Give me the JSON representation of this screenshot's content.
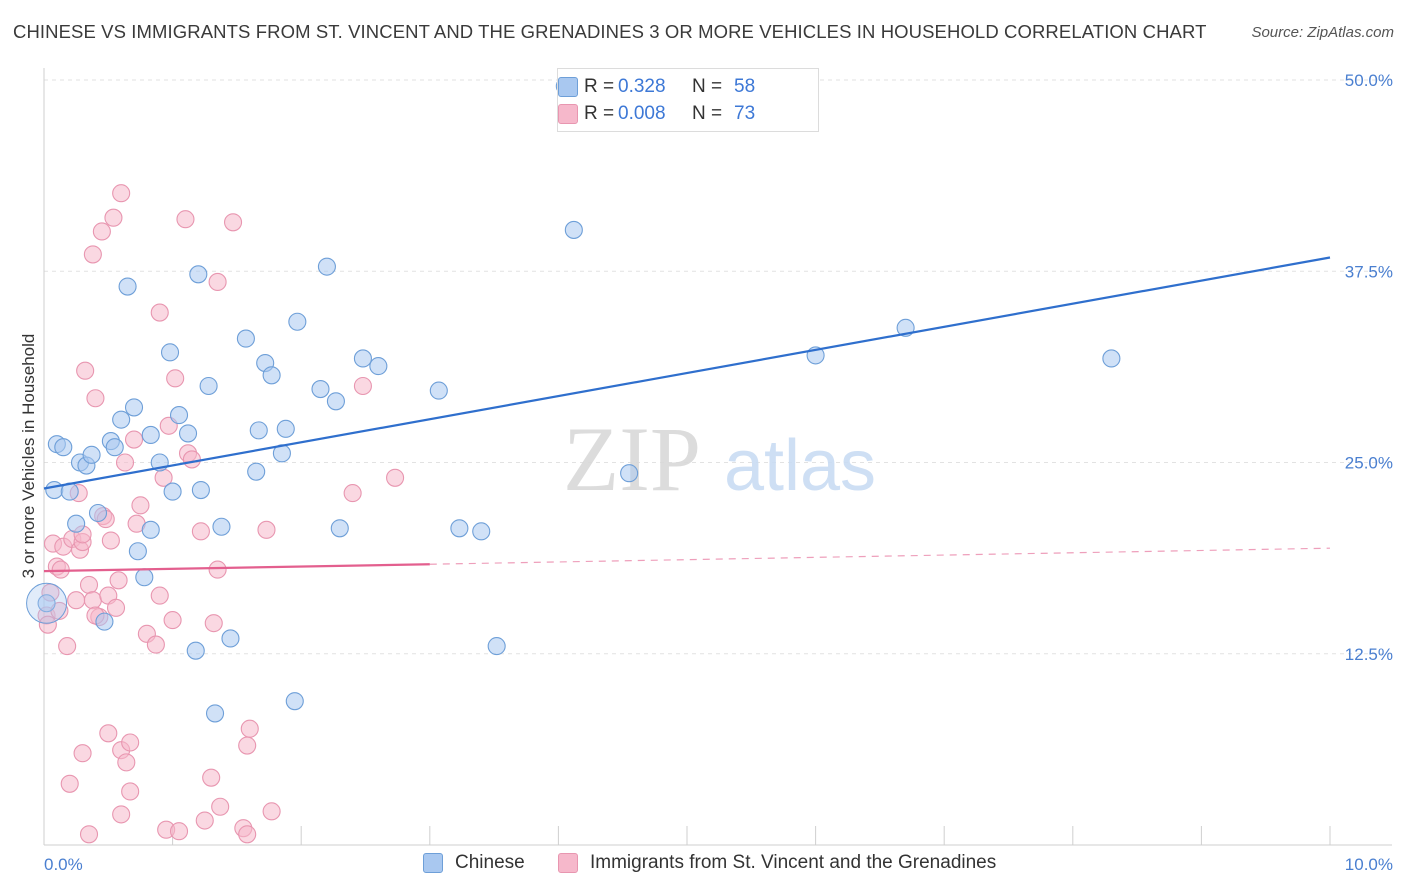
{
  "title": "CHINESE VS IMMIGRANTS FROM ST. VINCENT AND THE GRENADINES 3 OR MORE VEHICLES IN HOUSEHOLD CORRELATION CHART",
  "source": "Source: ZipAtlas.com",
  "watermark": {
    "zip": "ZIP",
    "atlas": "atlas"
  },
  "legend": {
    "rows": [
      {
        "r_label": "R =",
        "r_value": "0.328",
        "n_label": "N =",
        "n_value": "58",
        "color": "#a9c8f0"
      },
      {
        "r_label": "R =",
        "r_value": "0.008",
        "n_label": "N =",
        "n_value": "73",
        "color": "#f6b8cb"
      }
    ]
  },
  "bottom_legend": [
    "Chinese",
    "Immigrants from St. Vincent and the Grenadines"
  ],
  "colors": {
    "blue_fill": "#a9c8f0",
    "blue_stroke": "#6e9fd8",
    "blue_line": "#2f6fcd",
    "pink_fill": "#f6b8cb",
    "pink_stroke": "#e896b0",
    "pink_line": "#e35f8e",
    "tick_text": "#4a7fd0",
    "grid": "#e2e2e2"
  },
  "chart_data": {
    "type": "scatter",
    "xlabel": "",
    "ylabel": "3 or more Vehicles in Household",
    "xlim": [
      0,
      10
    ],
    "ylim": [
      0,
      50
    ],
    "x_tick_labels": [
      "0.0%",
      "10.0%"
    ],
    "y_ticks": [
      12.5,
      25.0,
      37.5,
      50.0
    ],
    "y_tick_labels": [
      "12.5%",
      "25.0%",
      "37.5%",
      "50.0%"
    ],
    "grid": true,
    "legend_position": "top-center",
    "series": [
      {
        "name": "Chinese",
        "trend": {
          "x0": 0,
          "y0": 23.3,
          "x1": 10.0,
          "y1": 38.4,
          "solid_to": 10.0
        },
        "points": [
          [
            0.02,
            15.8
          ],
          [
            0.08,
            23.2
          ],
          [
            0.1,
            26.2
          ],
          [
            0.15,
            26.0
          ],
          [
            0.2,
            23.1
          ],
          [
            0.25,
            21.0
          ],
          [
            0.28,
            25.0
          ],
          [
            0.33,
            24.8
          ],
          [
            0.37,
            25.5
          ],
          [
            0.42,
            21.7
          ],
          [
            0.47,
            14.6
          ],
          [
            0.52,
            26.4
          ],
          [
            0.55,
            26.0
          ],
          [
            0.6,
            27.8
          ],
          [
            0.65,
            36.5
          ],
          [
            0.7,
            28.6
          ],
          [
            0.73,
            19.2
          ],
          [
            0.78,
            17.5
          ],
          [
            0.83,
            26.8
          ],
          [
            0.83,
            20.6
          ],
          [
            0.9,
            25.0
          ],
          [
            0.98,
            32.2
          ],
          [
            1.0,
            23.1
          ],
          [
            1.05,
            28.1
          ],
          [
            1.12,
            26.9
          ],
          [
            1.18,
            12.7
          ],
          [
            1.2,
            37.3
          ],
          [
            1.22,
            23.2
          ],
          [
            1.28,
            30.0
          ],
          [
            1.33,
            8.6
          ],
          [
            1.38,
            20.8
          ],
          [
            1.45,
            13.5
          ],
          [
            1.57,
            33.1
          ],
          [
            1.65,
            24.4
          ],
          [
            1.67,
            27.1
          ],
          [
            1.72,
            31.5
          ],
          [
            1.77,
            30.7
          ],
          [
            1.85,
            25.6
          ],
          [
            1.88,
            27.2
          ],
          [
            1.95,
            9.4
          ],
          [
            1.97,
            34.2
          ],
          [
            2.15,
            29.8
          ],
          [
            2.2,
            37.8
          ],
          [
            2.27,
            29.0
          ],
          [
            2.3,
            20.7
          ],
          [
            2.48,
            31.8
          ],
          [
            2.6,
            31.3
          ],
          [
            3.07,
            29.7
          ],
          [
            3.23,
            20.7
          ],
          [
            3.4,
            20.5
          ],
          [
            3.52,
            13.0
          ],
          [
            4.05,
            49.6
          ],
          [
            4.12,
            40.2
          ],
          [
            4.55,
            24.3
          ],
          [
            6.0,
            32.0
          ],
          [
            6.7,
            33.8
          ],
          [
            8.3,
            31.8
          ]
        ]
      },
      {
        "name": "Immigrants from St. Vincent and the Grenadines",
        "trend": {
          "x0": 0,
          "y0": 17.9,
          "x1": 10.0,
          "y1": 19.4,
          "solid_to": 3.0
        },
        "points": [
          [
            0.02,
            15.0
          ],
          [
            0.03,
            14.4
          ],
          [
            0.05,
            16.5
          ],
          [
            0.07,
            19.7
          ],
          [
            0.1,
            18.2
          ],
          [
            0.12,
            15.3
          ],
          [
            0.13,
            18.0
          ],
          [
            0.15,
            19.5
          ],
          [
            0.18,
            13.0
          ],
          [
            0.2,
            4.0
          ],
          [
            0.22,
            20.0
          ],
          [
            0.25,
            16.0
          ],
          [
            0.27,
            23.0
          ],
          [
            0.28,
            19.3
          ],
          [
            0.3,
            6.0
          ],
          [
            0.3,
            19.8
          ],
          [
            0.3,
            20.3
          ],
          [
            0.32,
            31.0
          ],
          [
            0.35,
            17.0
          ],
          [
            0.35,
            0.7
          ],
          [
            0.38,
            38.6
          ],
          [
            0.38,
            16.0
          ],
          [
            0.4,
            29.2
          ],
          [
            0.43,
            14.9
          ],
          [
            0.4,
            15.0
          ],
          [
            0.45,
            40.1
          ],
          [
            0.46,
            21.5
          ],
          [
            0.48,
            21.3
          ],
          [
            0.5,
            7.3
          ],
          [
            0.5,
            16.3
          ],
          [
            0.52,
            19.9
          ],
          [
            0.54,
            41.0
          ],
          [
            0.56,
            15.5
          ],
          [
            0.58,
            17.3
          ],
          [
            0.6,
            42.6
          ],
          [
            0.6,
            6.2
          ],
          [
            0.63,
            25.0
          ],
          [
            0.6,
            2.0
          ],
          [
            0.64,
            5.4
          ],
          [
            0.67,
            6.7
          ],
          [
            0.67,
            3.5
          ],
          [
            0.7,
            26.5
          ],
          [
            0.72,
            21.0
          ],
          [
            0.75,
            22.2
          ],
          [
            0.8,
            13.8
          ],
          [
            0.87,
            13.1
          ],
          [
            0.9,
            16.3
          ],
          [
            0.9,
            34.8
          ],
          [
            0.93,
            24.0
          ],
          [
            0.95,
            1.0
          ],
          [
            0.97,
            27.4
          ],
          [
            1.0,
            14.7
          ],
          [
            1.02,
            30.5
          ],
          [
            1.05,
            0.9
          ],
          [
            1.1,
            40.9
          ],
          [
            1.12,
            25.6
          ],
          [
            1.15,
            25.2
          ],
          [
            1.22,
            20.5
          ],
          [
            1.25,
            1.6
          ],
          [
            1.3,
            4.4
          ],
          [
            1.32,
            14.5
          ],
          [
            1.35,
            18.0
          ],
          [
            1.35,
            36.8
          ],
          [
            1.37,
            2.5
          ],
          [
            1.47,
            40.7
          ],
          [
            1.55,
            1.1
          ],
          [
            1.58,
            0.7
          ],
          [
            1.58,
            6.5
          ],
          [
            1.6,
            7.6
          ],
          [
            1.73,
            20.6
          ],
          [
            1.77,
            2.2
          ],
          [
            2.4,
            23.0
          ],
          [
            2.48,
            30.0
          ],
          [
            2.73,
            24.0
          ]
        ]
      }
    ]
  }
}
